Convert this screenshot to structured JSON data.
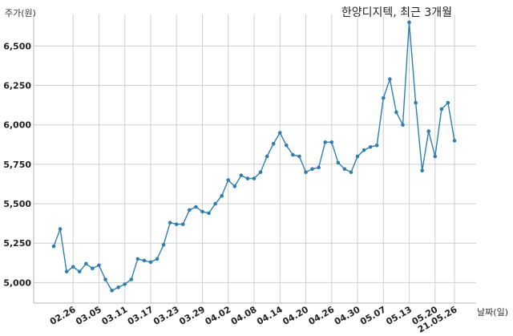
{
  "chart_data": {
    "type": "line",
    "title": "한양디지텍, 최근 3개월",
    "ylabel": "주가(원)",
    "xlabel": "날짜(일)",
    "ylim": [
      4870,
      6700
    ],
    "yticks": [
      5000,
      5250,
      5500,
      5750,
      6000,
      6250,
      6500
    ],
    "ytick_labels": [
      "5,000",
      "5,250",
      "5,500",
      "5,750",
      "6,000",
      "6,250",
      "6,500"
    ],
    "xtick_labels": [
      "02.26",
      "03.05",
      "03.11",
      "03.17",
      "03.23",
      "03.29",
      "04.02",
      "04.08",
      "04.14",
      "04.20",
      "04.26",
      "04.30",
      "05.07",
      "05.13",
      "05.20",
      "21.05.26"
    ],
    "grid": true,
    "color": "#2e7fb0",
    "series": [
      {
        "values": [
          5230,
          5340,
          5070,
          5100,
          5070,
          5120,
          5090,
          5110,
          5020,
          4950,
          4970,
          4990,
          5020,
          5150,
          5140,
          5130,
          5150,
          5240,
          5380,
          5370,
          5370,
          5460,
          5480,
          5450,
          5440,
          5500,
          5550,
          5650,
          5610,
          5680,
          5660,
          5660,
          5700,
          5800,
          5880,
          5950,
          5870,
          5810,
          5800,
          5700,
          5720,
          5730,
          5890,
          5890,
          5760,
          5720,
          5700,
          5800,
          5840,
          5860,
          5870,
          6170,
          6290,
          6080,
          6000,
          6650,
          6140,
          5710,
          5960,
          5800,
          6100,
          6140,
          5900
        ]
      }
    ]
  }
}
